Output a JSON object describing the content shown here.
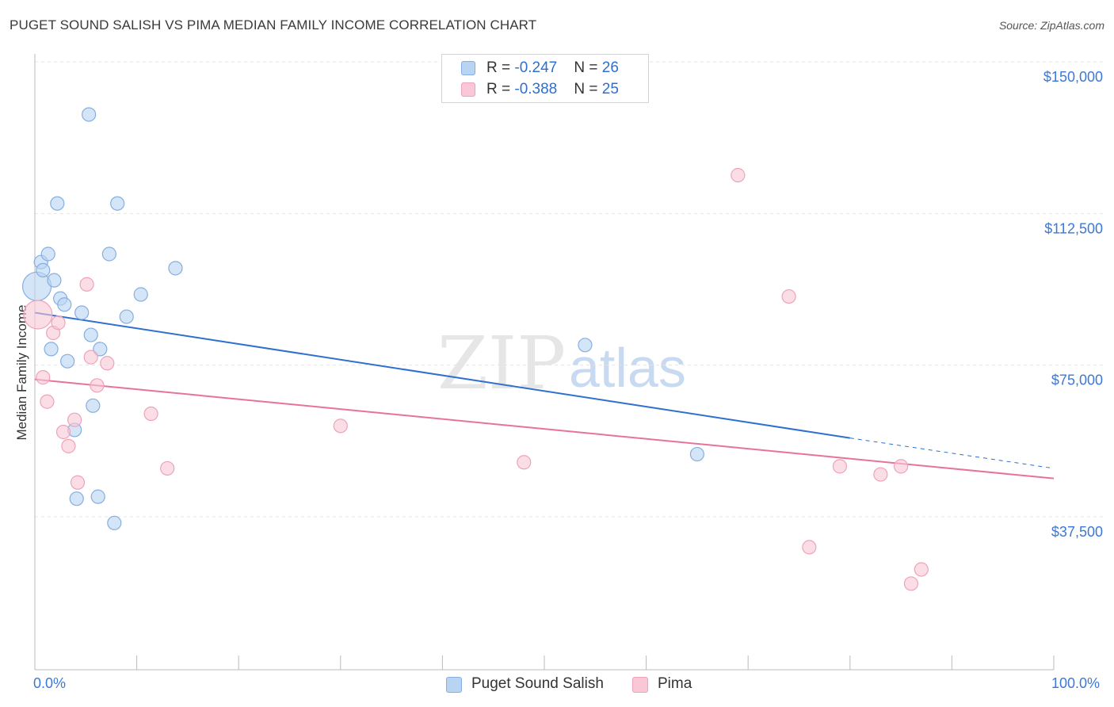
{
  "header": {
    "title": "PUGET SOUND SALISH VS PIMA MEDIAN FAMILY INCOME CORRELATION CHART",
    "source": "Source: ZipAtlas.com"
  },
  "legend": {
    "series1": {
      "r_label": "R = ",
      "r_value": "-0.247",
      "n_label": "N = ",
      "n_value": "26"
    },
    "series2": {
      "r_label": "R = ",
      "r_value": "-0.388",
      "n_label": "N = ",
      "n_value": "25"
    }
  },
  "colors": {
    "blue_fill": "#b9d3f3",
    "blue_stroke": "#86aee0",
    "blue_line": "#2f6fd0",
    "pink_fill": "#f9c7d6",
    "pink_stroke": "#eea3ba",
    "pink_line": "#e8739a",
    "axis_text": "#3d78d8",
    "grid": "#e4e4e4"
  },
  "chart_data": {
    "type": "scatter",
    "title": "PUGET SOUND SALISH VS PIMA MEDIAN FAMILY INCOME CORRELATION CHART",
    "xlabel": "",
    "ylabel": "Median Family Income",
    "xlim": [
      0,
      100
    ],
    "ylim": [
      0,
      155000
    ],
    "x_tick_labels": [
      "0.0%",
      "100.0%"
    ],
    "y_ticks": [
      37500,
      75000,
      112500,
      150000
    ],
    "y_tick_labels": [
      "$37,500",
      "$75,000",
      "$112,500",
      "$150,000"
    ],
    "watermark": {
      "zip": "ZIP",
      "atlas": "atlas"
    },
    "series": [
      {
        "name": "Puget Sound Salish",
        "color": "#b9d3f3",
        "points": [
          {
            "x": 0.2,
            "y": 98000,
            "big": true
          },
          {
            "x": 0.6,
            "y": 104000
          },
          {
            "x": 0.8,
            "y": 102000
          },
          {
            "x": 1.3,
            "y": 106000
          },
          {
            "x": 1.6,
            "y": 82500
          },
          {
            "x": 1.9,
            "y": 99500
          },
          {
            "x": 2.2,
            "y": 118500
          },
          {
            "x": 2.5,
            "y": 95000
          },
          {
            "x": 2.9,
            "y": 93500
          },
          {
            "x": 3.2,
            "y": 79500
          },
          {
            "x": 3.9,
            "y": 62500
          },
          {
            "x": 4.1,
            "y": 45500
          },
          {
            "x": 4.6,
            "y": 91500
          },
          {
            "x": 5.3,
            "y": 140500
          },
          {
            "x": 5.5,
            "y": 86000
          },
          {
            "x": 5.7,
            "y": 68500
          },
          {
            "x": 6.2,
            "y": 46000
          },
          {
            "x": 6.4,
            "y": 82500
          },
          {
            "x": 7.3,
            "y": 106000
          },
          {
            "x": 7.8,
            "y": 39500
          },
          {
            "x": 8.1,
            "y": 118500
          },
          {
            "x": 9.0,
            "y": 90500
          },
          {
            "x": 10.4,
            "y": 96000
          },
          {
            "x": 13.8,
            "y": 102500
          },
          {
            "x": 54.0,
            "y": 83500
          },
          {
            "x": 65.0,
            "y": 56500
          }
        ],
        "trend": {
          "x0": 0,
          "y0": 91500,
          "x1": 80,
          "y1": 60500,
          "dash_to_x": 100,
          "dash_to_y": 53000
        }
      },
      {
        "name": "Pima",
        "color": "#f9c7d6",
        "points": [
          {
            "x": 0.3,
            "y": 91000,
            "big": true
          },
          {
            "x": 0.8,
            "y": 75500
          },
          {
            "x": 1.2,
            "y": 69500
          },
          {
            "x": 1.8,
            "y": 86500
          },
          {
            "x": 2.3,
            "y": 89000
          },
          {
            "x": 2.8,
            "y": 62000
          },
          {
            "x": 3.3,
            "y": 58500
          },
          {
            "x": 3.9,
            "y": 65000
          },
          {
            "x": 4.2,
            "y": 49500
          },
          {
            "x": 5.1,
            "y": 98500
          },
          {
            "x": 5.5,
            "y": 80500
          },
          {
            "x": 6.1,
            "y": 73500
          },
          {
            "x": 7.1,
            "y": 79000
          },
          {
            "x": 11.4,
            "y": 66500
          },
          {
            "x": 13.0,
            "y": 53000
          },
          {
            "x": 30.0,
            "y": 63500
          },
          {
            "x": 48.0,
            "y": 54500
          },
          {
            "x": 69.0,
            "y": 125500
          },
          {
            "x": 74.0,
            "y": 95500
          },
          {
            "x": 76.0,
            "y": 33500
          },
          {
            "x": 79.0,
            "y": 53500
          },
          {
            "x": 83.0,
            "y": 51500
          },
          {
            "x": 85.0,
            "y": 53500
          },
          {
            "x": 86.0,
            "y": 24500
          },
          {
            "x": 87.0,
            "y": 28000
          }
        ],
        "trend": {
          "x0": 0,
          "y0": 75000,
          "x1": 100,
          "y1": 50500
        }
      }
    ]
  }
}
